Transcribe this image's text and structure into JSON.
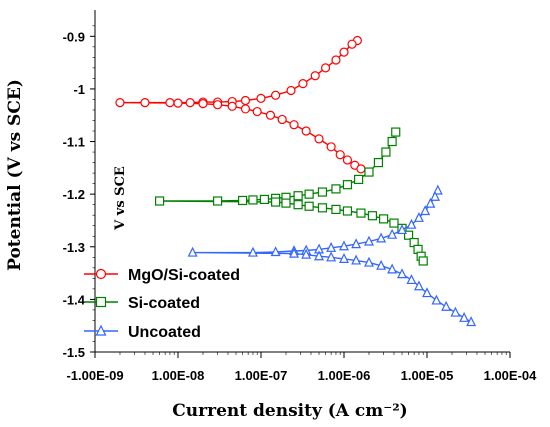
{
  "chart_data": {
    "type": "scatter",
    "title": "",
    "xlabel": "Current density (A cm⁻²)",
    "ylabel": "Potential (V vs SCE)",
    "annotation": "V vs SCE",
    "xscale": "log",
    "xlim": [
      1e-09,
      0.0001
    ],
    "ylim": [
      -1.5,
      -0.85
    ],
    "xticks": [
      "-1.00E-09",
      "1.00E-08",
      "1.00E-07",
      "1.00E-06",
      "1.00E-05",
      "1.00E-04"
    ],
    "yticks": [
      "-0.9",
      "-1",
      "-1.1",
      "-1.2",
      "-1.3",
      "-1.4",
      "-1.5"
    ],
    "grid": false,
    "legend_position": "bottom-left",
    "series": [
      {
        "name": "MgO/Si-coated",
        "color": "#ff0000",
        "marker": "circle",
        "points": [
          [
            1.45e-06,
            -0.908
          ],
          [
            1.25e-06,
            -0.915
          ],
          [
            1e-06,
            -0.93
          ],
          [
            8e-07,
            -0.945
          ],
          [
            6e-07,
            -0.96
          ],
          [
            4.5e-07,
            -0.975
          ],
          [
            3.2e-07,
            -0.99
          ],
          [
            2.3e-07,
            -1.003
          ],
          [
            1.5e-07,
            -1.012
          ],
          [
            1e-07,
            -1.018
          ],
          [
            6.5e-08,
            -1.022
          ],
          [
            4.5e-08,
            -1.024
          ],
          [
            3e-08,
            -1.025
          ],
          [
            2e-08,
            -1.025
          ],
          [
            1.4e-08,
            -1.026
          ],
          [
            8e-09,
            -1.026
          ],
          [
            4e-09,
            -1.026
          ],
          [
            2e-09,
            -1.026
          ],
          [
            1e-08,
            -1.027
          ],
          [
            2e-08,
            -1.028
          ],
          [
            3e-08,
            -1.03
          ],
          [
            4.5e-08,
            -1.033
          ],
          [
            6.5e-08,
            -1.038
          ],
          [
            9e-08,
            -1.043
          ],
          [
            1.3e-07,
            -1.05
          ],
          [
            1.8e-07,
            -1.058
          ],
          [
            2.5e-07,
            -1.068
          ],
          [
            3.5e-07,
            -1.08
          ],
          [
            5e-07,
            -1.095
          ],
          [
            7e-07,
            -1.11
          ],
          [
            9e-07,
            -1.125
          ],
          [
            1.1e-06,
            -1.135
          ],
          [
            1.35e-06,
            -1.145
          ],
          [
            1.6e-06,
            -1.152
          ]
        ]
      },
      {
        "name": "Si-coated",
        "color": "#008000",
        "marker": "square",
        "points": [
          [
            4.2e-06,
            -1.082
          ],
          [
            3.8e-06,
            -1.1
          ],
          [
            3.2e-06,
            -1.12
          ],
          [
            2.6e-06,
            -1.14
          ],
          [
            2e-06,
            -1.158
          ],
          [
            1.5e-06,
            -1.172
          ],
          [
            1.1e-06,
            -1.182
          ],
          [
            8e-07,
            -1.19
          ],
          [
            5.5e-07,
            -1.196
          ],
          [
            3.8e-07,
            -1.2
          ],
          [
            2.8e-07,
            -1.203
          ],
          [
            2e-07,
            -1.206
          ],
          [
            1.5e-07,
            -1.208
          ],
          [
            1.1e-07,
            -1.21
          ],
          [
            8e-08,
            -1.211
          ],
          [
            6e-08,
            -1.212
          ],
          [
            3e-08,
            -1.213
          ],
          [
            6e-09,
            -1.213
          ],
          [
            1.5e-07,
            -1.215
          ],
          [
            2e-07,
            -1.217
          ],
          [
            2.8e-07,
            -1.22
          ],
          [
            3.8e-07,
            -1.223
          ],
          [
            5.5e-07,
            -1.226
          ],
          [
            8e-07,
            -1.229
          ],
          [
            1.1e-06,
            -1.232
          ],
          [
            1.6e-06,
            -1.236
          ],
          [
            2.2e-06,
            -1.241
          ],
          [
            3e-06,
            -1.247
          ],
          [
            4e-06,
            -1.255
          ],
          [
            5e-06,
            -1.265
          ],
          [
            6e-06,
            -1.278
          ],
          [
            7e-06,
            -1.292
          ],
          [
            7.8e-06,
            -1.305
          ],
          [
            8.5e-06,
            -1.318
          ],
          [
            9e-06,
            -1.327
          ]
        ]
      },
      {
        "name": "Uncoated",
        "color": "#3366ff",
        "marker": "triangle",
        "points": [
          [
            1.35e-05,
            -1.193
          ],
          [
            1.25e-05,
            -1.205
          ],
          [
            1.1e-05,
            -1.218
          ],
          [
            9.5e-06,
            -1.232
          ],
          [
            8e-06,
            -1.245
          ],
          [
            6.5e-06,
            -1.258
          ],
          [
            5e-06,
            -1.268
          ],
          [
            3.8e-06,
            -1.277
          ],
          [
            2.8e-06,
            -1.284
          ],
          [
            2e-06,
            -1.29
          ],
          [
            1.4e-06,
            -1.295
          ],
          [
            1e-06,
            -1.299
          ],
          [
            7e-07,
            -1.302
          ],
          [
            5e-07,
            -1.305
          ],
          [
            3.5e-07,
            -1.307
          ],
          [
            2.5e-07,
            -1.308
          ],
          [
            1.5e-07,
            -1.31
          ],
          [
            8e-08,
            -1.311
          ],
          [
            1.5e-08,
            -1.311
          ],
          [
            2.5e-07,
            -1.313
          ],
          [
            3.5e-07,
            -1.315
          ],
          [
            5e-07,
            -1.318
          ],
          [
            7e-07,
            -1.32
          ],
          [
            1e-06,
            -1.323
          ],
          [
            1.4e-06,
            -1.326
          ],
          [
            2e-06,
            -1.33
          ],
          [
            2.8e-06,
            -1.336
          ],
          [
            3.8e-06,
            -1.343
          ],
          [
            5e-06,
            -1.352
          ],
          [
            6.5e-06,
            -1.363
          ],
          [
            8e-06,
            -1.375
          ],
          [
            1e-05,
            -1.388
          ],
          [
            1.3e-05,
            -1.402
          ],
          [
            1.7e-05,
            -1.414
          ],
          [
            2.2e-05,
            -1.425
          ],
          [
            2.8e-05,
            -1.435
          ],
          [
            3.4e-05,
            -1.443
          ]
        ]
      }
    ]
  }
}
